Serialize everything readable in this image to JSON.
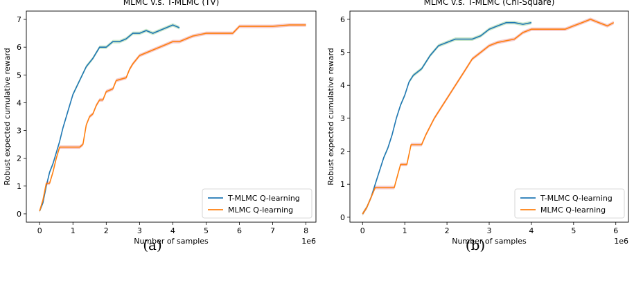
{
  "colors": {
    "t_mlmc": "#1f77b4",
    "mlmc": "#ff7f0e",
    "t_mlmc_band": "#2ca02c",
    "mlmc_band": "#d62728"
  },
  "chart_data": [
    {
      "type": "line",
      "title": "MLMC v.s. T-MLMC (TV)",
      "xlabel": "Number of samples",
      "ylabel": "Robust expected cumulative reward",
      "x_multiplier": "1e6",
      "xlim": [
        -0.4,
        8.3
      ],
      "ylim": [
        -0.3,
        7.3
      ],
      "xticks": [
        0,
        1,
        2,
        3,
        4,
        5,
        6,
        7,
        8
      ],
      "yticks": [
        0,
        1,
        2,
        3,
        4,
        5,
        6,
        7
      ],
      "legend": {
        "position": "lower-right",
        "entries": [
          "T-MLMC Q-learning",
          "MLMC Q-learning"
        ]
      },
      "caption": "(a)",
      "series": [
        {
          "name": "T-MLMC Q-learning",
          "color": "#1f77b4",
          "x": [
            0.0,
            0.1,
            0.2,
            0.3,
            0.4,
            0.5,
            0.6,
            0.7,
            0.8,
            0.9,
            1.0,
            1.2,
            1.4,
            1.6,
            1.8,
            2.0,
            2.2,
            2.4,
            2.6,
            2.8,
            3.0,
            3.2,
            3.4,
            3.6,
            3.8,
            4.0,
            4.2
          ],
          "y": [
            0.1,
            0.4,
            1.0,
            1.5,
            1.8,
            2.2,
            2.6,
            3.1,
            3.5,
            3.9,
            4.3,
            4.8,
            5.3,
            5.6,
            6.0,
            6.0,
            6.2,
            6.2,
            6.3,
            6.5,
            6.5,
            6.6,
            6.5,
            6.6,
            6.7,
            6.8,
            6.7
          ]
        },
        {
          "name": "MLMC Q-learning",
          "color": "#ff7f0e",
          "x": [
            0.0,
            0.1,
            0.2,
            0.3,
            0.4,
            0.5,
            0.6,
            1.2,
            1.3,
            1.4,
            1.5,
            1.6,
            1.7,
            1.8,
            1.9,
            2.0,
            2.2,
            2.3,
            2.6,
            2.7,
            2.8,
            3.0,
            3.2,
            3.4,
            3.6,
            3.8,
            4.0,
            4.2,
            4.6,
            5.0,
            5.8,
            6.0,
            7.0,
            7.5,
            8.0
          ],
          "y": [
            0.1,
            0.5,
            1.1,
            1.1,
            1.5,
            2.0,
            2.4,
            2.4,
            2.5,
            3.2,
            3.5,
            3.6,
            3.9,
            4.1,
            4.1,
            4.4,
            4.5,
            4.8,
            4.9,
            5.2,
            5.4,
            5.7,
            5.8,
            5.9,
            6.0,
            6.1,
            6.2,
            6.2,
            6.4,
            6.5,
            6.5,
            6.75,
            6.75,
            6.8,
            6.8
          ]
        }
      ]
    },
    {
      "type": "line",
      "title": "MLMC v.s. T-MLMC (Chi-Square)",
      "xlabel": "Number of samples",
      "ylabel": "Robust expected cumulative reward",
      "x_multiplier": "1e6",
      "xlim": [
        -0.3,
        6.3
      ],
      "ylim": [
        -0.15,
        6.25
      ],
      "xticks": [
        0,
        1,
        2,
        3,
        4,
        5,
        6
      ],
      "yticks": [
        0,
        1,
        2,
        3,
        4,
        5,
        6
      ],
      "legend": {
        "position": "lower-right",
        "entries": [
          "T-MLMC Q-learning",
          "MLMC Q-learning"
        ]
      },
      "caption": "(b)",
      "series": [
        {
          "name": "T-MLMC Q-learning",
          "color": "#1f77b4",
          "x": [
            0.0,
            0.1,
            0.2,
            0.3,
            0.4,
            0.5,
            0.6,
            0.7,
            0.8,
            0.9,
            1.0,
            1.1,
            1.2,
            1.4,
            1.6,
            1.8,
            2.0,
            2.2,
            2.4,
            2.6,
            2.8,
            3.0,
            3.2,
            3.4,
            3.6,
            3.8,
            4.0
          ],
          "y": [
            0.1,
            0.3,
            0.6,
            1.0,
            1.4,
            1.8,
            2.1,
            2.5,
            3.0,
            3.4,
            3.7,
            4.1,
            4.3,
            4.5,
            4.9,
            5.2,
            5.3,
            5.4,
            5.4,
            5.4,
            5.5,
            5.7,
            5.8,
            5.9,
            5.9,
            5.85,
            5.9
          ]
        },
        {
          "name": "MLMC Q-learning",
          "color": "#ff7f0e",
          "x": [
            0.0,
            0.1,
            0.2,
            0.3,
            0.75,
            0.9,
            1.05,
            1.15,
            1.4,
            1.5,
            1.7,
            1.9,
            2.0,
            2.2,
            2.4,
            2.6,
            2.8,
            3.0,
            3.2,
            3.4,
            3.6,
            3.8,
            4.0,
            4.4,
            4.8,
            5.0,
            5.2,
            5.4,
            5.6,
            5.8,
            5.95
          ],
          "y": [
            0.1,
            0.3,
            0.6,
            0.9,
            0.9,
            1.6,
            1.6,
            2.2,
            2.2,
            2.5,
            3.0,
            3.4,
            3.6,
            4.0,
            4.4,
            4.8,
            5.0,
            5.2,
            5.3,
            5.35,
            5.4,
            5.6,
            5.7,
            5.7,
            5.7,
            5.8,
            5.9,
            6.0,
            5.9,
            5.8,
            5.9
          ]
        }
      ]
    }
  ]
}
